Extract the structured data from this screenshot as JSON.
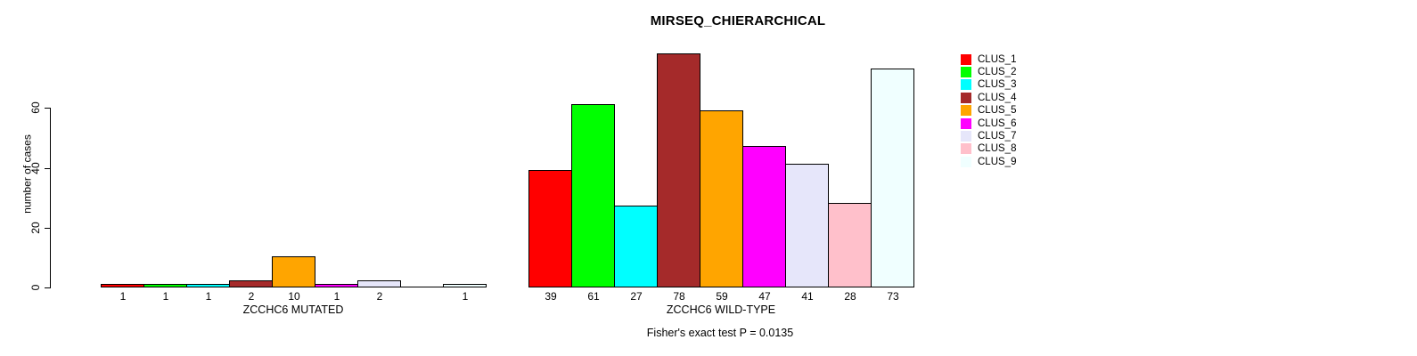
{
  "chart_data": {
    "type": "bar",
    "title": "MIRSEQ_CHIERARCHICAL",
    "ylabel": "number of cases",
    "xlabel": "",
    "ylim": [
      0,
      80
    ],
    "yticks": [
      0,
      20,
      40,
      60
    ],
    "grid": false,
    "legend_position": "top-right",
    "annotation": "Fisher's exact test P = 0.0135",
    "series": [
      {
        "name": "CLUS_1",
        "color": "#FF0000"
      },
      {
        "name": "CLUS_2",
        "color": "#00FF00"
      },
      {
        "name": "CLUS_3",
        "color": "#00FFFF"
      },
      {
        "name": "CLUS_4",
        "color": "#A52A2A"
      },
      {
        "name": "CLUS_5",
        "color": "#FFA500"
      },
      {
        "name": "CLUS_6",
        "color": "#FF00FF"
      },
      {
        "name": "CLUS_7",
        "color": "#E6E6FA"
      },
      {
        "name": "CLUS_8",
        "color": "#FFC0CB"
      },
      {
        "name": "CLUS_9",
        "color": "#F0FFFF"
      }
    ],
    "groups": [
      {
        "label": "ZCCHC6 MUTATED",
        "values": [
          1,
          1,
          1,
          2,
          10,
          1,
          2,
          0,
          1
        ]
      },
      {
        "label": "ZCCHC6 WILD-TYPE",
        "values": [
          39,
          61,
          27,
          78,
          59,
          47,
          41,
          28,
          73
        ]
      }
    ],
    "bar_outline_color": "#000000",
    "background_color": "#FFFFFF"
  }
}
